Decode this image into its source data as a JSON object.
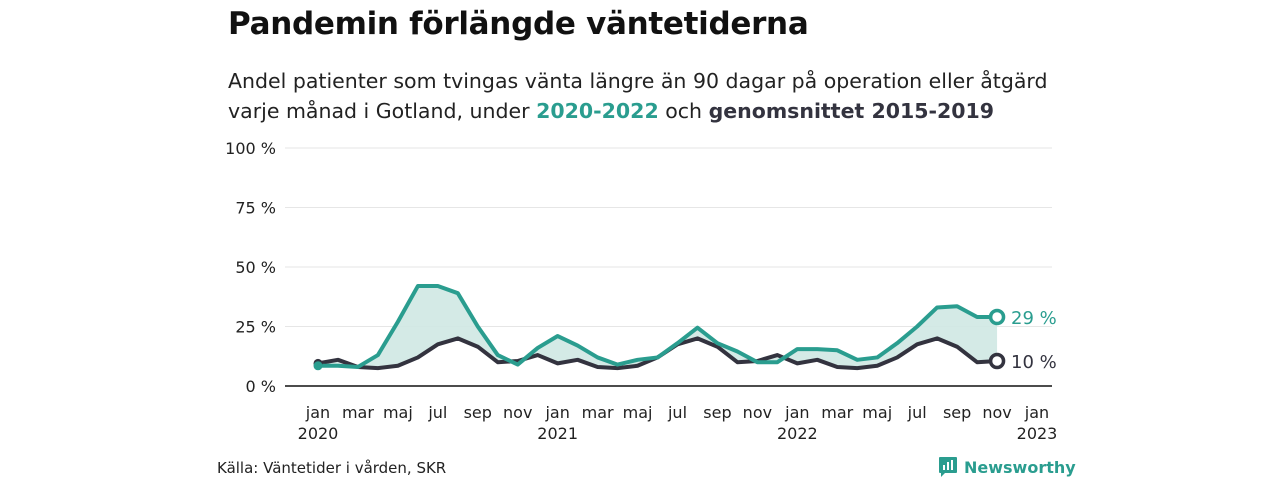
{
  "title": "Pandemin förlängde väntetiderna",
  "subtitle": {
    "line1": "Andel patienter som tvingas vänta längre än 90 dagar på operation eller åtgärd",
    "line2_prefix": "varje månad i Gotland, under ",
    "highlight_1": "2020-2022",
    "line2_middle": " och ",
    "highlight_2": "genomsnittet 2015-2019"
  },
  "source": "Källa: Väntetider i vården, SKR",
  "brand": "Newsworthy",
  "colors": {
    "pandemic": "#2a9d8f",
    "average": "#33333f",
    "fill": "#cfe8e3"
  },
  "chart_data": {
    "type": "line",
    "ylim": [
      0,
      100
    ],
    "yticks": [
      0,
      25,
      50,
      75,
      100
    ],
    "ytick_labels": [
      "0 %",
      "25 %",
      "50 %",
      "75 %",
      "100 %"
    ],
    "x_range": [
      "2020-01",
      "2023-01"
    ],
    "xticks": [
      {
        "month": 0,
        "label": "jan",
        "year": "2020"
      },
      {
        "month": 2,
        "label": "mar"
      },
      {
        "month": 4,
        "label": "maj"
      },
      {
        "month": 6,
        "label": "jul"
      },
      {
        "month": 8,
        "label": "sep"
      },
      {
        "month": 10,
        "label": "nov"
      },
      {
        "month": 12,
        "label": "jan",
        "year": "2021"
      },
      {
        "month": 14,
        "label": "mar"
      },
      {
        "month": 16,
        "label": "maj"
      },
      {
        "month": 18,
        "label": "jul"
      },
      {
        "month": 20,
        "label": "sep"
      },
      {
        "month": 22,
        "label": "nov"
      },
      {
        "month": 24,
        "label": "jan",
        "year": "2022"
      },
      {
        "month": 26,
        "label": "mar"
      },
      {
        "month": 28,
        "label": "maj"
      },
      {
        "month": 30,
        "label": "jul"
      },
      {
        "month": 32,
        "label": "sep"
      },
      {
        "month": 34,
        "label": "nov"
      },
      {
        "month": 36,
        "label": "jan",
        "year": "2023"
      }
    ],
    "series": [
      {
        "name": "2020-2022",
        "color": "#2a9d8f",
        "end_label": "29 %",
        "values": [
          8.5,
          8.5,
          8,
          13,
          27,
          42,
          42,
          39,
          25,
          13,
          9,
          16,
          21,
          17,
          12,
          9,
          11,
          12,
          18,
          24.5,
          18,
          14.5,
          10,
          10,
          15.5,
          15.5,
          15,
          11,
          12,
          18,
          25,
          33,
          33.5,
          29,
          29
        ]
      },
      {
        "name": "genomsnittet 2015-2019",
        "color": "#33333f",
        "end_label": "10 %",
        "values": [
          9.5,
          11,
          8,
          7.5,
          8.5,
          12,
          17.5,
          20,
          16.5,
          10,
          10.5,
          13,
          9.5,
          11,
          8,
          7.5,
          8.5,
          12,
          17.5,
          20,
          16.5,
          10,
          10.5,
          13,
          9.5,
          11,
          8,
          7.5,
          8.5,
          12,
          17.5,
          20,
          16.5,
          10,
          10.5
        ]
      }
    ]
  }
}
